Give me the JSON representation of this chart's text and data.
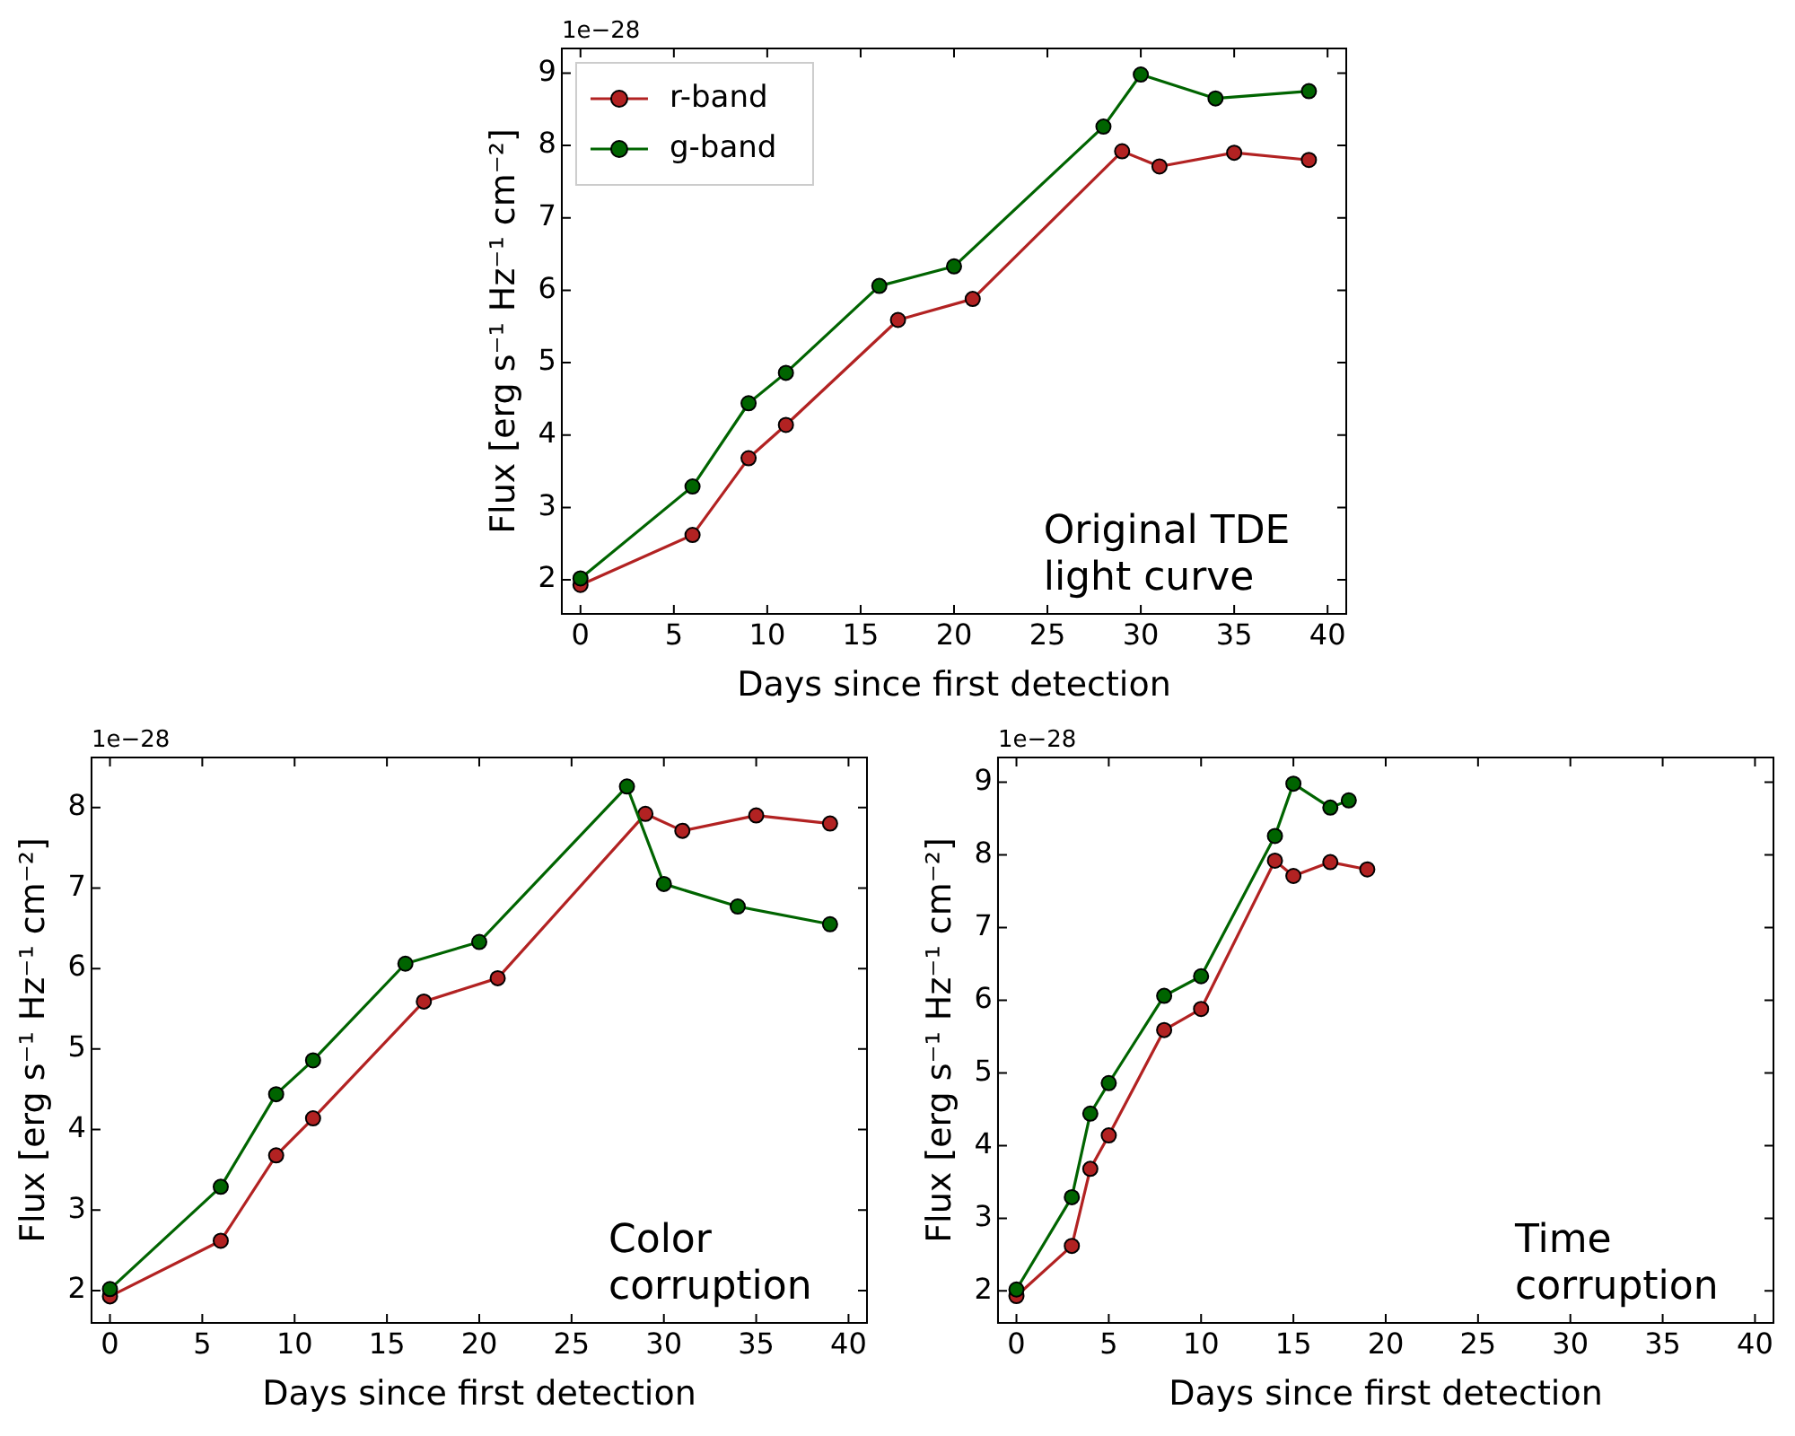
{
  "chart_data": [
    {
      "type": "line",
      "xlabel": "Days since first detection",
      "ylabel": "Flux [erg s⁻¹ Hz⁻¹ cm⁻²]",
      "annotations": [
        "1e−28",
        "Original TDE\nlight curve"
      ],
      "legend": "top left",
      "marker": "circle",
      "xlim": [
        -1,
        41
      ],
      "xticks": [
        0,
        5,
        10,
        15,
        20,
        25,
        30,
        35,
        40
      ],
      "ylim": [
        1.53,
        9.34
      ],
      "yticks": [
        2,
        3,
        4,
        5,
        6,
        7,
        8,
        9
      ],
      "series": [
        {
          "name": "r-band",
          "color": "#b22222",
          "x": [
            0,
            6,
            9,
            11,
            17,
            21,
            29,
            31,
            35,
            39
          ],
          "values": [
            1.93,
            2.62,
            3.68,
            4.14,
            5.59,
            5.88,
            7.92,
            7.71,
            7.9,
            7.8
          ]
        },
        {
          "name": "g-band",
          "color": "#006400",
          "x": [
            0,
            6,
            9,
            11,
            16,
            20,
            28,
            30,
            34,
            39
          ],
          "values": [
            2.02,
            3.29,
            4.44,
            4.86,
            6.06,
            6.33,
            8.26,
            8.98,
            8.65,
            8.75
          ]
        }
      ]
    },
    {
      "type": "line",
      "xlabel": "Days since first detection",
      "ylabel": "Flux [erg s⁻¹ Hz⁻¹ cm⁻²]",
      "annotations": [
        "1e−28",
        "Color\ncorruption"
      ],
      "marker": "circle",
      "xlim": [
        -1,
        41
      ],
      "xticks": [
        0,
        5,
        10,
        15,
        20,
        25,
        30,
        35,
        40
      ],
      "ylim": [
        1.6,
        8.62
      ],
      "yticks": [
        2,
        3,
        4,
        5,
        6,
        7,
        8
      ],
      "series": [
        {
          "color": "#b22222",
          "x": [
            0,
            6,
            9,
            11,
            17,
            21,
            29,
            31,
            35,
            39
          ],
          "values": [
            1.93,
            2.62,
            3.68,
            4.14,
            5.59,
            5.88,
            7.92,
            7.71,
            7.9,
            7.8
          ]
        },
        {
          "color": "#006400",
          "x": [
            0,
            6,
            9,
            11,
            16,
            20,
            28,
            30,
            34,
            39
          ],
          "values": [
            2.02,
            3.29,
            4.44,
            4.86,
            6.06,
            6.33,
            8.26,
            7.05,
            6.77,
            6.55
          ]
        }
      ]
    },
    {
      "type": "line",
      "xlabel": "Days since first detection",
      "ylabel": "Flux [erg s⁻¹ Hz⁻¹ cm⁻²]",
      "annotations": [
        "1e−28",
        "Time\ncorruption"
      ],
      "marker": "circle",
      "xlim": [
        -1,
        41
      ],
      "xticks": [
        0,
        5,
        10,
        15,
        20,
        25,
        30,
        35,
        40
      ],
      "ylim": [
        1.56,
        9.34
      ],
      "yticks": [
        2,
        3,
        4,
        5,
        6,
        7,
        8,
        9
      ],
      "series": [
        {
          "color": "#b22222",
          "x": [
            0,
            3,
            4,
            5,
            8,
            10,
            14,
            15,
            17,
            19
          ],
          "values": [
            1.93,
            2.62,
            3.68,
            4.14,
            5.59,
            5.88,
            7.92,
            7.71,
            7.9,
            7.8
          ]
        },
        {
          "color": "#006400",
          "x": [
            0,
            3,
            4,
            5,
            8,
            10,
            14,
            15,
            17,
            18
          ],
          "values": [
            2.02,
            3.29,
            4.44,
            4.86,
            6.06,
            6.33,
            8.26,
            8.98,
            8.65,
            8.75
          ]
        }
      ]
    }
  ]
}
